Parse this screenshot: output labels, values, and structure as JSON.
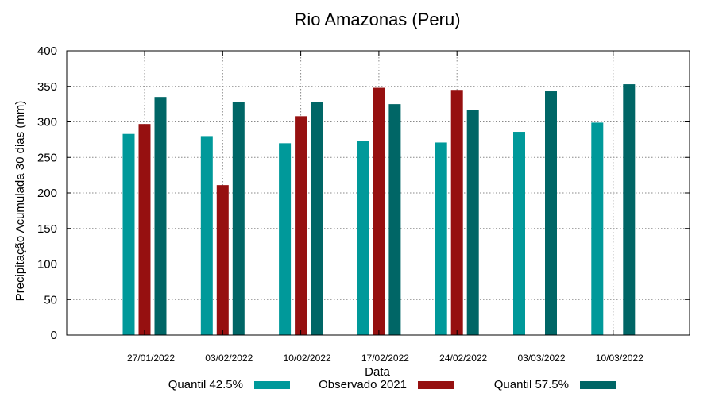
{
  "chart_data": {
    "type": "bar",
    "title": "Rio Amazonas (Peru)",
    "xlabel": "Data",
    "ylabel": "Precipitação Acumulada 30 dias (mm)",
    "ylim": [
      0,
      400
    ],
    "yticks": [
      0,
      50,
      100,
      150,
      200,
      250,
      300,
      350,
      400
    ],
    "grid": true,
    "legend_position": "bottom",
    "categories": [
      "27/01/2022",
      "03/02/2022",
      "10/02/2022",
      "17/02/2022",
      "24/02/2022",
      "03/03/2022",
      "10/03/2022"
    ],
    "series": [
      {
        "name": "Quantil 42.5%",
        "color": "#00999A",
        "values": [
          283,
          280,
          270,
          273,
          271,
          286,
          299
        ]
      },
      {
        "name": "Observado 2021",
        "color": "#961010",
        "values": [
          297,
          211,
          308,
          348,
          345,
          null,
          null
        ]
      },
      {
        "name": "Quantil 57.5%",
        "color": "#006666",
        "values": [
          335,
          328,
          328,
          325,
          317,
          343,
          353
        ]
      }
    ]
  }
}
